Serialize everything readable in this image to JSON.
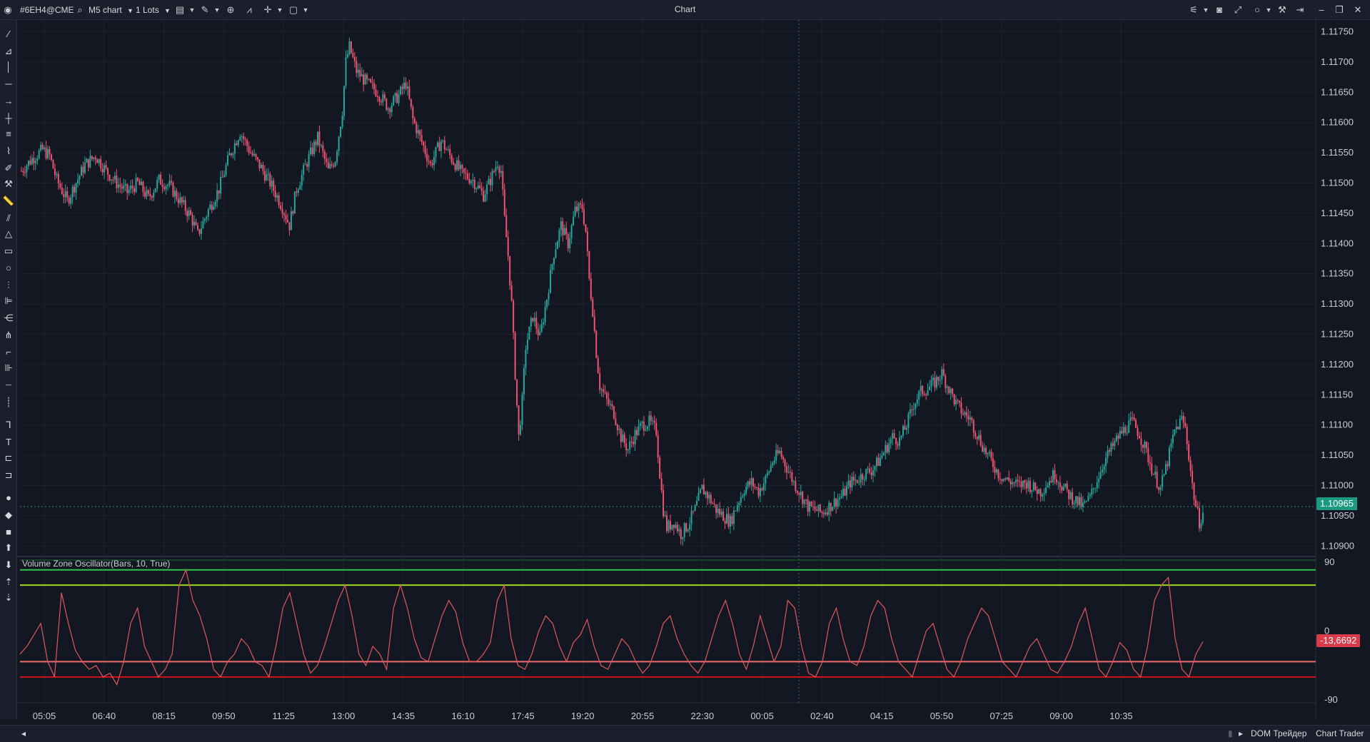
{
  "titlebar": {
    "symbol": "#6EH4@CME",
    "timeframe": "M5 chart",
    "lots": "1 Lots",
    "window_title": "Chart"
  },
  "price_axis": {
    "labels": [
      "1.11750",
      "1.11700",
      "1.11650",
      "1.11600",
      "1.11550",
      "1.11500",
      "1.11450",
      "1.11400",
      "1.11350",
      "1.11300",
      "1.11250",
      "1.11200",
      "1.11150",
      "1.11100",
      "1.11050",
      "1.11000",
      "1.10950",
      "1.10900"
    ],
    "current_price": "1.10965"
  },
  "time_axis": {
    "labels": [
      "05:05",
      "06:40",
      "08:15",
      "09:50",
      "11:25",
      "13:00",
      "14:35",
      "16:10",
      "17:45",
      "19:20",
      "20:55",
      "22:30",
      "00:05",
      "02:40",
      "04:15",
      "05:50",
      "07:25",
      "09:00",
      "10:35"
    ]
  },
  "indicator": {
    "label": "Volume Zone Oscillator(Bars, 10, True)",
    "axis_labels": [
      "90",
      "0",
      "-90"
    ],
    "current_value": "-13,6692"
  },
  "statusbar": {
    "dom_label": "DOM Трейдер",
    "chart_trader_label": "Chart Trader"
  },
  "colors": {
    "background": "#131722",
    "bull": "#26a69a",
    "bear": "#ef5370",
    "oscillator": "#e0585b",
    "level_green_dark": "#2fc54b",
    "level_green_light": "#9ed81e",
    "level_red_light": "#ef6b6b",
    "level_red_dark": "#d0121a"
  },
  "chart_data": [
    {
      "type": "candlestick",
      "symbol": "#6EH4@CME",
      "interval": "M5",
      "ylim": [
        1.10885,
        1.1176
      ],
      "y_tick_labels": [
        "1.11750",
        "1.11700",
        "1.11650",
        "1.11600",
        "1.11550",
        "1.11500",
        "1.11450",
        "1.11400",
        "1.11350",
        "1.11300",
        "1.11250",
        "1.11200",
        "1.11150",
        "1.11100",
        "1.11050",
        "1.11000",
        "1.10950",
        "1.10900"
      ],
      "x_tick_labels": [
        "05:05",
        "06:40",
        "08:15",
        "09:50",
        "11:25",
        "13:00",
        "14:35",
        "16:10",
        "17:45",
        "19:20",
        "20:55",
        "22:30",
        "00:05",
        "02:40",
        "04:15",
        "05:50",
        "07:25",
        "09:00",
        "10:35"
      ],
      "close_path": [
        [
          0,
          1.1152
        ],
        [
          6,
          1.1154
        ],
        [
          12,
          1.11555
        ],
        [
          16,
          1.11545
        ],
        [
          20,
          1.11505
        ],
        [
          26,
          1.1147
        ],
        [
          30,
          1.11495
        ],
        [
          36,
          1.1153
        ],
        [
          42,
          1.11545
        ],
        [
          48,
          1.1152
        ],
        [
          54,
          1.115
        ],
        [
          60,
          1.11485
        ],
        [
          66,
          1.115
        ],
        [
          72,
          1.11475
        ],
        [
          78,
          1.11505
        ],
        [
          84,
          1.11495
        ],
        [
          90,
          1.1147
        ],
        [
          96,
          1.11445
        ],
        [
          100,
          1.11415
        ],
        [
          106,
          1.11455
        ],
        [
          112,
          1.1149
        ],
        [
          118,
          1.11545
        ],
        [
          124,
          1.11585
        ],
        [
          130,
          1.1155
        ],
        [
          136,
          1.11525
        ],
        [
          142,
          1.11495
        ],
        [
          148,
          1.1146
        ],
        [
          152,
          1.1143
        ],
        [
          156,
          1.1149
        ],
        [
          162,
          1.11535
        ],
        [
          168,
          1.11575
        ],
        [
          174,
          1.1152
        ],
        [
          178,
          1.1154
        ],
        [
          182,
          1.1162
        ],
        [
          184,
          1.117
        ],
        [
          186,
          1.11725
        ],
        [
          190,
          1.11685
        ],
        [
          196,
          1.11665
        ],
        [
          202,
          1.1165
        ],
        [
          208,
          1.11625
        ],
        [
          214,
          1.11645
        ],
        [
          218,
          1.11665
        ],
        [
          222,
          1.11605
        ],
        [
          228,
          1.1156
        ],
        [
          232,
          1.1153
        ],
        [
          238,
          1.1157
        ],
        [
          244,
          1.1154
        ],
        [
          250,
          1.11515
        ],
        [
          256,
          1.11505
        ],
        [
          262,
          1.1148
        ],
        [
          266,
          1.11505
        ],
        [
          270,
          1.11535
        ],
        [
          272,
          1.1152
        ],
        [
          274,
          1.1144
        ],
        [
          276,
          1.1138
        ],
        [
          278,
          1.113
        ],
        [
          280,
          1.11185
        ],
        [
          282,
          1.1108
        ],
        [
          284,
          1.1114
        ],
        [
          286,
          1.1123
        ],
        [
          290,
          1.1128
        ],
        [
          294,
          1.11245
        ],
        [
          298,
          1.1131
        ],
        [
          302,
          1.11385
        ],
        [
          306,
          1.1143
        ],
        [
          310,
          1.114
        ],
        [
          314,
          1.11455
        ],
        [
          318,
          1.1146
        ],
        [
          320,
          1.1142
        ],
        [
          322,
          1.1134
        ],
        [
          324,
          1.1129
        ],
        [
          326,
          1.1122
        ],
        [
          328,
          1.11165
        ],
        [
          332,
          1.1114
        ],
        [
          336,
          1.1112
        ],
        [
          340,
          1.1108
        ],
        [
          344,
          1.1106
        ],
        [
          348,
          1.11085
        ],
        [
          352,
          1.111
        ],
        [
          356,
          1.11105
        ],
        [
          360,
          1.1109
        ],
        [
          362,
          1.1102
        ],
        [
          364,
          1.1096
        ],
        [
          366,
          1.1093
        ],
        [
          370,
          1.1094
        ],
        [
          374,
          1.1092
        ],
        [
          378,
          1.10935
        ],
        [
          382,
          1.1096
        ],
        [
          386,
          1.10995
        ],
        [
          390,
          1.1098
        ],
        [
          394,
          1.1096
        ],
        [
          398,
          1.1095
        ],
        [
          402,
          1.1094
        ],
        [
          406,
          1.1097
        ],
        [
          410,
          1.10995
        ],
        [
          414,
          1.11005
        ],
        [
          418,
          1.1099
        ],
        [
          422,
          1.1101
        ],
        [
          426,
          1.1104
        ],
        [
          430,
          1.11055
        ],
        [
          434,
          1.1103
        ],
        [
          438,
          1.11005
        ],
        [
          442,
          1.10985
        ],
        [
          446,
          1.10965
        ],
        [
          450,
          1.1096
        ],
        [
          454,
          1.10955
        ],
        [
          458,
          1.10965
        ],
        [
          462,
          1.10975
        ],
        [
          466,
          1.10985
        ],
        [
          470,
          1.11005
        ],
        [
          474,
          1.1101
        ],
        [
          478,
          1.1102
        ],
        [
          482,
          1.11025
        ],
        [
          486,
          1.1104
        ],
        [
          490,
          1.1106
        ],
        [
          494,
          1.1108
        ],
        [
          498,
          1.11075
        ],
        [
          502,
          1.111
        ],
        [
          506,
          1.11135
        ],
        [
          510,
          1.11155
        ],
        [
          514,
          1.1116
        ],
        [
          518,
          1.1117
        ],
        [
          522,
          1.11185
        ],
        [
          526,
          1.1116
        ],
        [
          530,
          1.11135
        ],
        [
          534,
          1.1112
        ],
        [
          538,
          1.1111
        ],
        [
          542,
          1.11085
        ],
        [
          546,
          1.1106
        ],
        [
          550,
          1.1104
        ],
        [
          554,
          1.1102
        ],
        [
          558,
          1.1101
        ],
        [
          562,
          1.11005
        ],
        [
          566,
          1.11
        ],
        [
          570,
          1.11005
        ],
        [
          574,
          1.10995
        ],
        [
          578,
          1.1099
        ],
        [
          582,
          1.11005
        ],
        [
          586,
          1.1102
        ],
        [
          590,
          1.11
        ],
        [
          594,
          1.10985
        ],
        [
          598,
          1.10975
        ],
        [
          602,
          1.10965
        ],
        [
          606,
          1.1098
        ],
        [
          610,
          1.1101
        ],
        [
          614,
          1.1104
        ],
        [
          618,
          1.1106
        ],
        [
          622,
          1.1108
        ],
        [
          626,
          1.11095
        ],
        [
          630,
          1.11105
        ],
        [
          634,
          1.11085
        ],
        [
          638,
          1.11055
        ],
        [
          642,
          1.1102
        ],
        [
          646,
          1.10995
        ],
        [
          650,
          1.1104
        ],
        [
          654,
          1.1109
        ],
        [
          658,
          1.1111
        ],
        [
          660,
          1.11095
        ],
        [
          662,
          1.1105
        ],
        [
          664,
          1.11
        ],
        [
          666,
          1.10965
        ],
        [
          668,
          1.1094
        ],
        [
          670,
          1.10955
        ]
      ]
    },
    {
      "type": "line",
      "name": "Volume Zone Oscillator(Bars, 10, True)",
      "ylim": [
        -90,
        90
      ],
      "y_tick_labels": [
        "90",
        "0",
        "-90"
      ],
      "levels": [
        80,
        60,
        -40,
        -60
      ],
      "current_value": -13.6692,
      "values_approx": [
        -30,
        -20,
        -5,
        10,
        -40,
        -60,
        50,
        10,
        -25,
        -40,
        -50,
        -45,
        -60,
        -55,
        -70,
        -40,
        10,
        30,
        -20,
        -40,
        -60,
        -50,
        -30,
        60,
        80,
        40,
        20,
        -10,
        -50,
        -60,
        -40,
        -30,
        -10,
        -20,
        -40,
        -45,
        -60,
        -20,
        30,
        50,
        10,
        -30,
        -55,
        -45,
        -20,
        10,
        40,
        60,
        20,
        -30,
        -45,
        -20,
        -30,
        -50,
        30,
        60,
        30,
        -10,
        -35,
        -40,
        -10,
        20,
        40,
        25,
        -15,
        -40,
        -40,
        -30,
        -15,
        40,
        60,
        -10,
        -45,
        -50,
        -30,
        0,
        20,
        10,
        -20,
        -40,
        -15,
        -5,
        15,
        -20,
        -45,
        -50,
        -30,
        -10,
        -20,
        -40,
        -55,
        -45,
        -20,
        10,
        20,
        -10,
        -30,
        -45,
        -55,
        -40,
        -10,
        20,
        40,
        10,
        -30,
        -50,
        -20,
        20,
        -10,
        -40,
        -20,
        40,
        30,
        -20,
        -55,
        -60,
        -40,
        10,
        30,
        -10,
        -40,
        -45,
        -20,
        20,
        40,
        30,
        -10,
        -40,
        -50,
        -60,
        -30,
        0,
        10,
        -20,
        -50,
        -60,
        -40,
        -10,
        10,
        30,
        20,
        -10,
        -40,
        -50,
        -60,
        -40,
        -20,
        -10,
        -30,
        -50,
        -55,
        -40,
        -20,
        10,
        30,
        -10,
        -50,
        -60,
        -40,
        -15,
        -25,
        -50,
        -60,
        -20,
        40,
        60,
        70,
        -10,
        -50,
        -60,
        -30,
        -14
      ]
    }
  ]
}
